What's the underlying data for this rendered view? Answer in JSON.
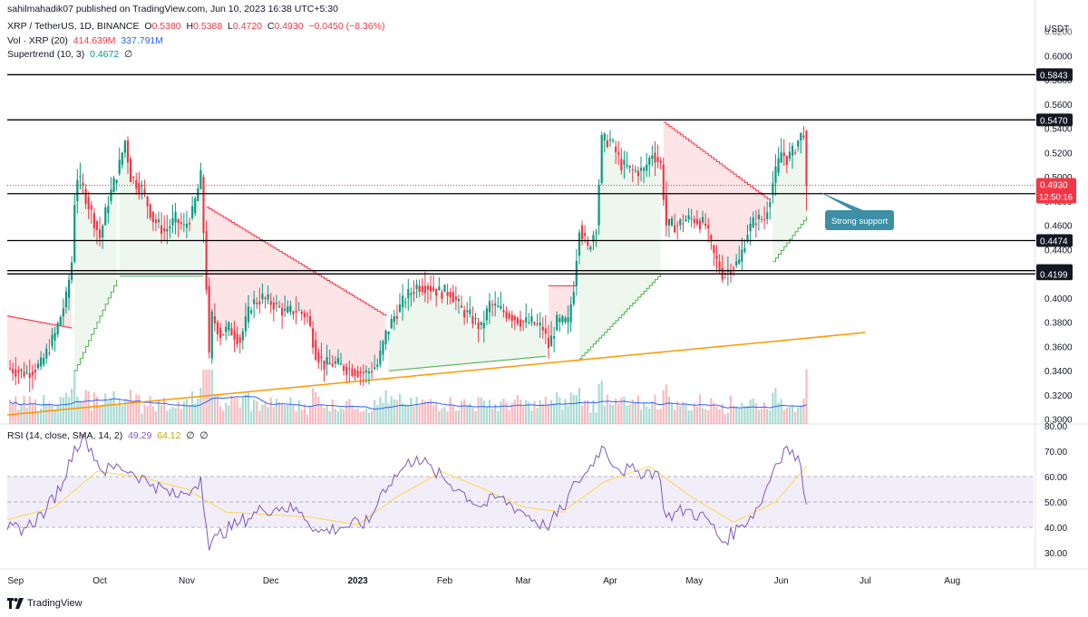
{
  "header": {
    "publisher": "sahilmahadik07 published on TradingView.com, Jun 10, 2023 16:38 UTC+5:30",
    "symbol": "XRP / TetherUS, 1D, BINANCE",
    "ohlc": {
      "o_label": "O",
      "o": "0.5380",
      "h_label": "H",
      "h": "0.5388",
      "l_label": "L",
      "l": "0.4720",
      "c_label": "C",
      "c": "0.4930",
      "change": "−0.0450 (−8.36%)"
    },
    "vol": {
      "label": "Vol · XRP (20)",
      "v1": "414.639M",
      "v2": "337.791M"
    },
    "supertrend": {
      "label": "Supertrend (10, 3)",
      "value": "0.4672",
      "extra": "∅"
    },
    "rsi": {
      "label": "RSI (14, close, SMA, 14, 2)",
      "v1": "49.29",
      "v2": "64.12",
      "v3": "∅",
      "v4": "∅"
    }
  },
  "brand": "TradingView",
  "colors": {
    "up": "#089981",
    "down": "#f23645",
    "supertrend_up": "#4caf50",
    "supertrend_down": "#f23645",
    "trendline": "#ff9800",
    "rsi": "#7e57c2",
    "rsi_ma": "#ffd54f",
    "vol_ma": "#2962ff",
    "level": "#000000"
  },
  "chart_data": [
    {
      "type": "candlestick",
      "title": "XRP / TetherUS, 1D, BINANCE",
      "price_axis_label": "USDT",
      "yticks": [
        "0.6200",
        "0.6000",
        "0.5800",
        "0.5600",
        "0.5400",
        "0.5200",
        "0.5000",
        "0.4800",
        "0.4600",
        "0.4400",
        "0.4200",
        "0.4000",
        "0.3800",
        "0.3600",
        "0.3400",
        "0.3200",
        "0.3000"
      ],
      "ylim": [
        0.296,
        0.625
      ],
      "date_ticks": [
        "Sep",
        "Oct",
        "Nov",
        "Dec",
        "2023",
        "Feb",
        "Mar",
        "Apr",
        "May",
        "Jun",
        "Jul",
        "Aug"
      ],
      "date_tick_dates": [
        "2022-09-01",
        "2022-10-01",
        "2022-11-01",
        "2022-12-01",
        "2023-01-01",
        "2023-02-01",
        "2023-03-01",
        "2023-04-01",
        "2023-05-01",
        "2023-06-01",
        "2023-07-01",
        "2023-08-01"
      ],
      "xlim": [
        "2022-08-29",
        "2023-08-30"
      ],
      "horizontal_levels": [
        {
          "label": "0.5843",
          "value": 0.5843
        },
        {
          "label": "0.5470",
          "value": 0.547
        },
        {
          "label": "0.4861",
          "value": 0.4861
        },
        {
          "label": "0.4474",
          "value": 0.4474
        },
        {
          "label": "0.4226",
          "value": 0.4226
        },
        {
          "label": "0.4199",
          "value": 0.4199
        }
      ],
      "current_price": {
        "label": "0.4930",
        "value": 0.493,
        "countdown": "12:50:16"
      },
      "annotation": {
        "text": "Strong support"
      },
      "trendline": {
        "from": {
          "date": "2022-08-29",
          "value": 0.3035
        },
        "to": {
          "date": "2023-07-01",
          "value": 0.3715
        }
      },
      "price_path": [
        [
          "2022-08-29",
          0.342
        ],
        [
          "2022-09-05",
          0.338
        ],
        [
          "2022-09-10",
          0.345
        ],
        [
          "2022-09-15",
          0.37
        ],
        [
          "2022-09-19",
          0.4
        ],
        [
          "2022-09-21",
          0.43
        ],
        [
          "2022-09-22",
          0.48
        ],
        [
          "2022-09-23",
          0.5
        ],
        [
          "2022-09-25",
          0.49
        ],
        [
          "2022-09-28",
          0.47
        ],
        [
          "2022-10-01",
          0.45
        ],
        [
          "2022-10-04",
          0.48
        ],
        [
          "2022-10-08",
          0.51
        ],
        [
          "2022-10-10",
          0.53
        ],
        [
          "2022-10-12",
          0.5
        ],
        [
          "2022-10-16",
          0.49
        ],
        [
          "2022-10-20",
          0.465
        ],
        [
          "2022-10-24",
          0.455
        ],
        [
          "2022-10-28",
          0.465
        ],
        [
          "2022-10-31",
          0.458
        ],
        [
          "2022-11-03",
          0.47
        ],
        [
          "2022-11-06",
          0.5
        ],
        [
          "2022-11-08",
          0.41
        ],
        [
          "2022-11-09",
          0.35
        ],
        [
          "2022-11-10",
          0.385
        ],
        [
          "2022-11-13",
          0.37
        ],
        [
          "2022-11-16",
          0.375
        ],
        [
          "2022-11-20",
          0.365
        ],
        [
          "2022-11-24",
          0.395
        ],
        [
          "2022-11-28",
          0.4
        ],
        [
          "2022-12-02",
          0.395
        ],
        [
          "2022-12-06",
          0.388
        ],
        [
          "2022-12-10",
          0.39
        ],
        [
          "2022-12-14",
          0.385
        ],
        [
          "2022-12-17",
          0.355
        ],
        [
          "2022-12-20",
          0.345
        ],
        [
          "2022-12-24",
          0.346
        ],
        [
          "2022-12-28",
          0.342
        ],
        [
          "2022-12-31",
          0.34
        ],
        [
          "2023-01-04",
          0.338
        ],
        [
          "2023-01-08",
          0.345
        ],
        [
          "2023-01-11",
          0.37
        ],
        [
          "2023-01-14",
          0.385
        ],
        [
          "2023-01-18",
          0.4
        ],
        [
          "2023-01-22",
          0.41
        ],
        [
          "2023-01-26",
          0.41
        ],
        [
          "2023-01-30",
          0.405
        ],
        [
          "2023-02-03",
          0.405
        ],
        [
          "2023-02-07",
          0.39
        ],
        [
          "2023-02-10",
          0.385
        ],
        [
          "2023-02-14",
          0.375
        ],
        [
          "2023-02-17",
          0.395
        ],
        [
          "2023-02-21",
          0.39
        ],
        [
          "2023-02-25",
          0.385
        ],
        [
          "2023-03-01",
          0.38
        ],
        [
          "2023-03-04",
          0.38
        ],
        [
          "2023-03-08",
          0.375
        ],
        [
          "2023-03-10",
          0.36
        ],
        [
          "2023-03-13",
          0.38
        ],
        [
          "2023-03-17",
          0.38
        ],
        [
          "2023-03-19",
          0.41
        ],
        [
          "2023-03-21",
          0.46
        ],
        [
          "2023-03-24",
          0.44
        ],
        [
          "2023-03-27",
          0.46
        ],
        [
          "2023-03-29",
          0.53
        ],
        [
          "2023-04-01",
          0.53
        ],
        [
          "2023-04-05",
          0.51
        ],
        [
          "2023-04-09",
          0.505
        ],
        [
          "2023-04-13",
          0.505
        ],
        [
          "2023-04-16",
          0.52
        ],
        [
          "2023-04-19",
          0.51
        ],
        [
          "2023-04-21",
          0.46
        ],
        [
          "2023-04-25",
          0.46
        ],
        [
          "2023-04-28",
          0.465
        ],
        [
          "2023-05-01",
          0.465
        ],
        [
          "2023-05-05",
          0.46
        ],
        [
          "2023-05-08",
          0.435
        ],
        [
          "2023-05-11",
          0.42
        ],
        [
          "2023-05-14",
          0.425
        ],
        [
          "2023-05-17",
          0.43
        ],
        [
          "2023-05-20",
          0.455
        ],
        [
          "2023-05-23",
          0.465
        ],
        [
          "2023-05-26",
          0.465
        ],
        [
          "2023-05-29",
          0.495
        ],
        [
          "2023-06-01",
          0.52
        ],
        [
          "2023-06-03",
          0.515
        ],
        [
          "2023-06-05",
          0.52
        ],
        [
          "2023-06-07",
          0.53
        ],
        [
          "2023-06-09",
          0.538
        ],
        [
          "2023-06-10",
          0.493
        ]
      ],
      "supertrend": [
        {
          "from": "2022-08-29",
          "to": "2022-09-21",
          "value_start": 0.385,
          "value_end": 0.375,
          "trend": "down"
        },
        {
          "from": "2022-09-22",
          "to": "2022-10-07",
          "value_start": 0.34,
          "value_end": 0.415,
          "trend": "up"
        },
        {
          "from": "2022-10-08",
          "to": "2022-11-07",
          "value_start": 0.418,
          "value_end": 0.418,
          "trend": "up"
        },
        {
          "from": "2022-11-08",
          "to": "2023-01-11",
          "value_start": 0.475,
          "value_end": 0.385,
          "trend": "down"
        },
        {
          "from": "2023-01-12",
          "to": "2023-03-09",
          "value_start": 0.34,
          "value_end": 0.352,
          "trend": "up"
        },
        {
          "from": "2023-03-10",
          "to": "2023-03-20",
          "value_start": 0.41,
          "value_end": 0.41,
          "trend": "down"
        },
        {
          "from": "2023-03-21",
          "to": "2023-04-19",
          "value_start": 0.35,
          "value_end": 0.42,
          "trend": "up"
        },
        {
          "from": "2023-04-20",
          "to": "2023-05-28",
          "value_start": 0.545,
          "value_end": 0.48,
          "trend": "down"
        },
        {
          "from": "2023-05-29",
          "to": "2023-06-10",
          "value_start": 0.43,
          "value_end": 0.467,
          "trend": "up"
        }
      ]
    },
    {
      "type": "bar",
      "title": "Vol · XRP (20)",
      "description": "Daily volume bars coloured by candle direction with a 20-period moving average.",
      "current": "414.639M",
      "ma": "337.791M"
    },
    {
      "type": "line",
      "title": "RSI (14, close, SMA, 14, 2)",
      "yticks": [
        "80.00",
        "70.00",
        "60.00",
        "50.00",
        "40.00",
        "30.00"
      ],
      "ylim": [
        25,
        80
      ],
      "band": [
        40,
        60
      ],
      "midline": 50,
      "series": [
        {
          "name": "RSI",
          "points": [
            [
              "2022-08-29",
              39
            ],
            [
              "2022-09-05",
              40
            ],
            [
              "2022-09-12",
              47
            ],
            [
              "2022-09-18",
              58
            ],
            [
              "2022-09-22",
              72
            ],
            [
              "2022-09-26",
              75
            ],
            [
              "2022-10-02",
              62
            ],
            [
              "2022-10-08",
              64
            ],
            [
              "2022-10-12",
              62
            ],
            [
              "2022-10-20",
              57
            ],
            [
              "2022-10-28",
              52
            ],
            [
              "2022-11-04",
              56
            ],
            [
              "2022-11-06",
              60
            ],
            [
              "2022-11-09",
              31
            ],
            [
              "2022-11-12",
              37
            ],
            [
              "2022-11-20",
              42
            ],
            [
              "2022-11-28",
              47
            ],
            [
              "2022-12-05",
              48
            ],
            [
              "2022-12-12",
              46
            ],
            [
              "2022-12-18",
              38
            ],
            [
              "2022-12-26",
              40
            ],
            [
              "2023-01-05",
              42
            ],
            [
              "2023-01-10",
              55
            ],
            [
              "2023-01-16",
              62
            ],
            [
              "2023-01-22",
              68
            ],
            [
              "2023-01-28",
              62
            ],
            [
              "2023-02-06",
              55
            ],
            [
              "2023-02-14",
              48
            ],
            [
              "2023-02-20",
              52
            ],
            [
              "2023-03-01",
              46
            ],
            [
              "2023-03-09",
              40
            ],
            [
              "2023-03-15",
              47
            ],
            [
              "2023-03-20",
              58
            ],
            [
              "2023-03-24",
              62
            ],
            [
              "2023-03-29",
              72
            ],
            [
              "2023-04-04",
              63
            ],
            [
              "2023-04-10",
              62
            ],
            [
              "2023-04-18",
              62
            ],
            [
              "2023-04-21",
              44
            ],
            [
              "2023-04-28",
              47
            ],
            [
              "2023-05-06",
              43
            ],
            [
              "2023-05-11",
              34
            ],
            [
              "2023-05-18",
              41
            ],
            [
              "2023-05-24",
              48
            ],
            [
              "2023-05-30",
              65
            ],
            [
              "2023-06-03",
              72
            ],
            [
              "2023-06-08",
              64
            ],
            [
              "2023-06-10",
              49
            ]
          ]
        },
        {
          "name": "RSI-based MA",
          "points": [
            [
              "2022-08-29",
              43
            ],
            [
              "2022-09-15",
              48
            ],
            [
              "2022-09-30",
              62
            ],
            [
              "2022-10-15",
              60
            ],
            [
              "2022-11-01",
              55
            ],
            [
              "2022-11-15",
              46
            ],
            [
              "2022-12-01",
              45
            ],
            [
              "2022-12-15",
              44
            ],
            [
              "2023-01-01",
              41
            ],
            [
              "2023-01-15",
              52
            ],
            [
              "2023-01-31",
              62
            ],
            [
              "2023-02-15",
              55
            ],
            [
              "2023-03-01",
              48
            ],
            [
              "2023-03-15",
              46
            ],
            [
              "2023-03-30",
              58
            ],
            [
              "2023-04-15",
              64
            ],
            [
              "2023-04-30",
              52
            ],
            [
              "2023-05-15",
              42
            ],
            [
              "2023-05-30",
              50
            ],
            [
              "2023-06-10",
              64
            ]
          ]
        }
      ]
    }
  ]
}
